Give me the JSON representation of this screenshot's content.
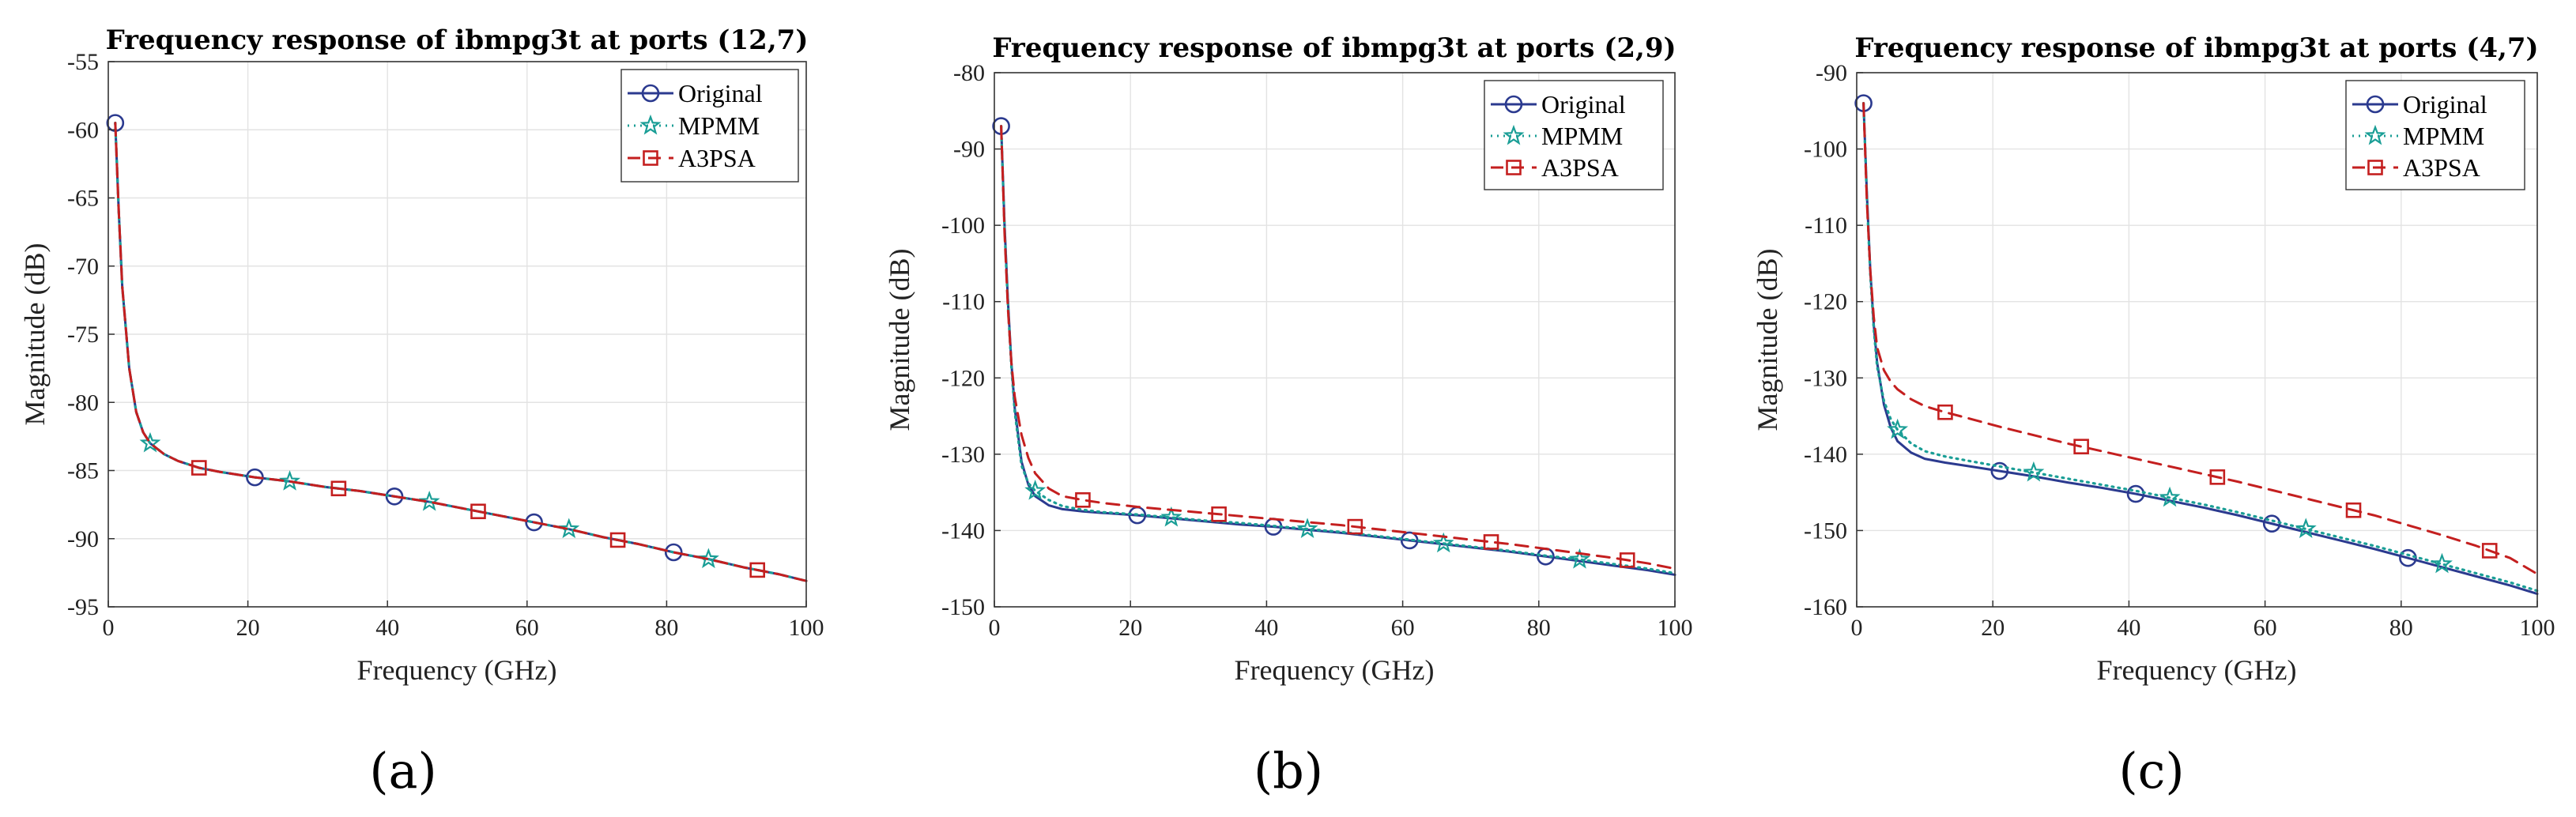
{
  "colors": {
    "original": "#2b3a8f",
    "mpmm": "#1a9e96",
    "a3psa": "#c41f1f",
    "grid": "#e3e3e3",
    "axis": "#333333"
  },
  "legend": [
    "Original",
    "MPMM",
    "A3PSA"
  ],
  "chart_data": [
    {
      "type": "line",
      "panel": "a",
      "caption": "(a)",
      "title": "Frequency response of ibmpg3t at ports (12,7)",
      "xlabel": "Frequency (GHz)",
      "ylabel": "Magnitude (dB)",
      "xlim": [
        0,
        100
      ],
      "ylim": [
        -95,
        -55
      ],
      "xticks": [
        0,
        20,
        40,
        60,
        80,
        100
      ],
      "yticks": [
        -95,
        -90,
        -85,
        -80,
        -75,
        -70,
        -65,
        -60,
        -55
      ],
      "grid": true,
      "legend_position": "top-right",
      "series": [
        {
          "name": "Original",
          "style": "solid",
          "marker": "circle",
          "x": [
            1,
            1.5,
            2,
            3,
            4,
            5,
            6,
            8,
            10,
            13,
            16,
            21,
            26,
            31,
            36,
            41,
            46,
            51,
            56,
            61,
            66,
            71,
            76,
            81,
            86,
            91,
            96,
            100
          ],
          "y": [
            -59.5,
            -66.0,
            -71.5,
            -77.5,
            -80.7,
            -82.2,
            -83.0,
            -83.8,
            -84.3,
            -84.8,
            -85.1,
            -85.5,
            -85.8,
            -86.2,
            -86.5,
            -86.9,
            -87.3,
            -87.8,
            -88.3,
            -88.8,
            -89.3,
            -89.9,
            -90.4,
            -91.0,
            -91.5,
            -92.1,
            -92.6,
            -93.1
          ],
          "marker_x": [
            1,
            21,
            41,
            61,
            81
          ]
        },
        {
          "name": "MPMM",
          "style": "dotted",
          "marker": "star",
          "x": [
            1,
            1.5,
            2,
            3,
            4,
            5,
            6,
            8,
            10,
            13,
            16,
            21,
            26,
            31,
            36,
            41,
            46,
            51,
            56,
            61,
            66,
            71,
            76,
            81,
            86,
            91,
            96,
            100
          ],
          "y": [
            -59.5,
            -66.0,
            -71.5,
            -77.5,
            -80.7,
            -82.2,
            -83.0,
            -83.8,
            -84.3,
            -84.8,
            -85.1,
            -85.5,
            -85.8,
            -86.2,
            -86.5,
            -86.9,
            -87.3,
            -87.8,
            -88.3,
            -88.8,
            -89.3,
            -89.9,
            -90.4,
            -91.0,
            -91.5,
            -92.1,
            -92.6,
            -93.1
          ],
          "marker_x": [
            6,
            26,
            46,
            66,
            86
          ]
        },
        {
          "name": "A3PSA",
          "style": "dashed",
          "marker": "square",
          "x": [
            1,
            1.5,
            2,
            3,
            4,
            5,
            6,
            8,
            10,
            13,
            16,
            21,
            26,
            31,
            36,
            41,
            46,
            51,
            56,
            61,
            66,
            71,
            76,
            81,
            86,
            91,
            96,
            100
          ],
          "y": [
            -59.5,
            -66.0,
            -71.5,
            -77.5,
            -80.7,
            -82.2,
            -83.0,
            -83.8,
            -84.3,
            -84.8,
            -85.1,
            -85.5,
            -85.8,
            -86.2,
            -86.5,
            -86.9,
            -87.3,
            -87.8,
            -88.3,
            -88.8,
            -89.3,
            -89.9,
            -90.4,
            -91.0,
            -91.5,
            -92.1,
            -92.6,
            -93.1
          ],
          "marker_x": [
            13,
            33,
            53,
            73,
            93
          ]
        }
      ]
    },
    {
      "type": "line",
      "panel": "b",
      "caption": "(b)",
      "title": "Frequency response of ibmpg3t at ports (2,9)",
      "xlabel": "Frequency (GHz)",
      "ylabel": "Magnitude (dB)",
      "xlim": [
        0,
        100
      ],
      "ylim": [
        -150,
        -80
      ],
      "xticks": [
        0,
        20,
        40,
        60,
        80,
        100
      ],
      "yticks": [
        -150,
        -140,
        -130,
        -120,
        -110,
        -100,
        -90,
        -80
      ],
      "grid": true,
      "legend_position": "top-right",
      "series": [
        {
          "name": "Original",
          "style": "solid",
          "marker": "circle",
          "x": [
            1,
            1.5,
            2,
            2.5,
            3,
            4,
            5,
            6,
            8,
            10,
            13,
            16,
            21,
            26,
            31,
            36,
            41,
            46,
            51,
            56,
            61,
            66,
            71,
            76,
            81,
            86,
            91,
            96,
            100
          ],
          "y": [
            -87.0,
            -100.0,
            -110.0,
            -118.0,
            -124.0,
            -131.0,
            -134.0,
            -135.5,
            -136.7,
            -137.2,
            -137.5,
            -137.7,
            -138.0,
            -138.4,
            -138.8,
            -139.2,
            -139.5,
            -139.9,
            -140.3,
            -140.8,
            -141.3,
            -141.8,
            -142.3,
            -142.8,
            -143.4,
            -144.0,
            -144.6,
            -145.2,
            -145.8
          ],
          "marker_x": [
            1,
            21,
            41,
            61,
            81
          ]
        },
        {
          "name": "MPMM",
          "style": "dotted",
          "marker": "star",
          "x": [
            1,
            1.5,
            2,
            2.5,
            3,
            4,
            5,
            6,
            8,
            10,
            13,
            16,
            21,
            26,
            31,
            36,
            41,
            46,
            51,
            56,
            61,
            66,
            71,
            76,
            81,
            86,
            91,
            96,
            100
          ],
          "y": [
            -87.0,
            -100.5,
            -110.5,
            -118.5,
            -124.5,
            -131.5,
            -133.8,
            -134.8,
            -136.0,
            -136.8,
            -137.3,
            -137.6,
            -137.9,
            -138.3,
            -138.7,
            -139.0,
            -139.4,
            -139.8,
            -140.2,
            -140.7,
            -141.2,
            -141.7,
            -142.2,
            -142.7,
            -143.3,
            -143.8,
            -144.4,
            -145.0,
            -145.6
          ],
          "marker_x": [
            6,
            26,
            46,
            66,
            86
          ]
        },
        {
          "name": "A3PSA",
          "style": "dashed",
          "marker": "square",
          "x": [
            1,
            1.5,
            2,
            2.5,
            3,
            4,
            5,
            6,
            8,
            10,
            13,
            16,
            21,
            26,
            31,
            36,
            41,
            46,
            51,
            56,
            61,
            66,
            71,
            76,
            81,
            86,
            91,
            96,
            100
          ],
          "y": [
            -87.0,
            -101.0,
            -111.0,
            -118.0,
            -122.5,
            -127.5,
            -130.5,
            -132.5,
            -134.5,
            -135.5,
            -136.0,
            -136.4,
            -136.9,
            -137.3,
            -137.7,
            -138.1,
            -138.5,
            -138.9,
            -139.3,
            -139.8,
            -140.3,
            -140.8,
            -141.3,
            -141.8,
            -142.4,
            -143.0,
            -143.6,
            -144.3,
            -145.0
          ],
          "marker_x": [
            13,
            33,
            53,
            73,
            93
          ]
        }
      ]
    },
    {
      "type": "line",
      "panel": "c",
      "caption": "(c)",
      "title": "Frequency response of ibmpg3t at ports (4,7)",
      "xlabel": "Frequency (GHz)",
      "ylabel": "Magnitude (dB)",
      "xlim": [
        0,
        100
      ],
      "ylim": [
        -160,
        -90
      ],
      "xticks": [
        0,
        20,
        40,
        60,
        80,
        100
      ],
      "yticks": [
        -160,
        -150,
        -140,
        -130,
        -120,
        -110,
        -100,
        -90
      ],
      "grid": true,
      "legend_position": "top-right",
      "series": [
        {
          "name": "Original",
          "style": "solid",
          "marker": "circle",
          "x": [
            1,
            1.5,
            2,
            2.5,
            3,
            4,
            5,
            6,
            8,
            10,
            13,
            16,
            21,
            26,
            31,
            36,
            41,
            46,
            51,
            56,
            61,
            66,
            71,
            76,
            81,
            86,
            91,
            96,
            100
          ],
          "y": [
            -94.0,
            -106.0,
            -116.0,
            -123.0,
            -128.0,
            -133.5,
            -136.5,
            -138.3,
            -139.8,
            -140.6,
            -141.1,
            -141.5,
            -142.2,
            -142.9,
            -143.7,
            -144.4,
            -145.2,
            -146.1,
            -147.0,
            -148.0,
            -149.1,
            -150.2,
            -151.3,
            -152.4,
            -153.6,
            -154.8,
            -156.0,
            -157.2,
            -158.3
          ],
          "marker_x": [
            1,
            21,
            41,
            61,
            81
          ]
        },
        {
          "name": "MPMM",
          "style": "dotted",
          "marker": "star",
          "x": [
            1,
            1.5,
            2,
            2.5,
            3,
            4,
            5,
            6,
            8,
            10,
            13,
            16,
            21,
            26,
            31,
            36,
            41,
            46,
            51,
            56,
            61,
            66,
            71,
            76,
            81,
            86,
            91,
            96,
            100
          ],
          "y": [
            -94.0,
            -106.5,
            -116.5,
            -123.5,
            -128.5,
            -133.0,
            -135.4,
            -136.8,
            -138.6,
            -139.6,
            -140.3,
            -140.8,
            -141.6,
            -142.4,
            -143.2,
            -144.0,
            -144.8,
            -145.7,
            -146.6,
            -147.6,
            -148.7,
            -149.8,
            -150.9,
            -152.0,
            -153.2,
            -154.4,
            -155.6,
            -156.8,
            -157.9
          ],
          "marker_x": [
            6,
            26,
            46,
            66,
            86
          ]
        },
        {
          "name": "A3PSA",
          "style": "dashed",
          "marker": "square",
          "x": [
            1,
            1.5,
            2,
            2.5,
            3,
            4,
            5,
            6,
            8,
            10,
            13,
            16,
            21,
            26,
            31,
            36,
            41,
            46,
            51,
            56,
            61,
            66,
            71,
            76,
            81,
            86,
            91,
            96,
            100
          ],
          "y": [
            -94.0,
            -107.0,
            -116.0,
            -122.0,
            -126.0,
            -129.0,
            -130.5,
            -131.5,
            -132.8,
            -133.7,
            -134.5,
            -135.2,
            -136.4,
            -137.5,
            -138.6,
            -139.6,
            -140.6,
            -141.6,
            -142.6,
            -143.6,
            -144.7,
            -145.8,
            -146.9,
            -148.0,
            -149.3,
            -150.6,
            -152.0,
            -153.6,
            -155.7
          ],
          "marker_x": [
            13,
            33,
            53,
            73,
            93
          ]
        }
      ]
    }
  ]
}
